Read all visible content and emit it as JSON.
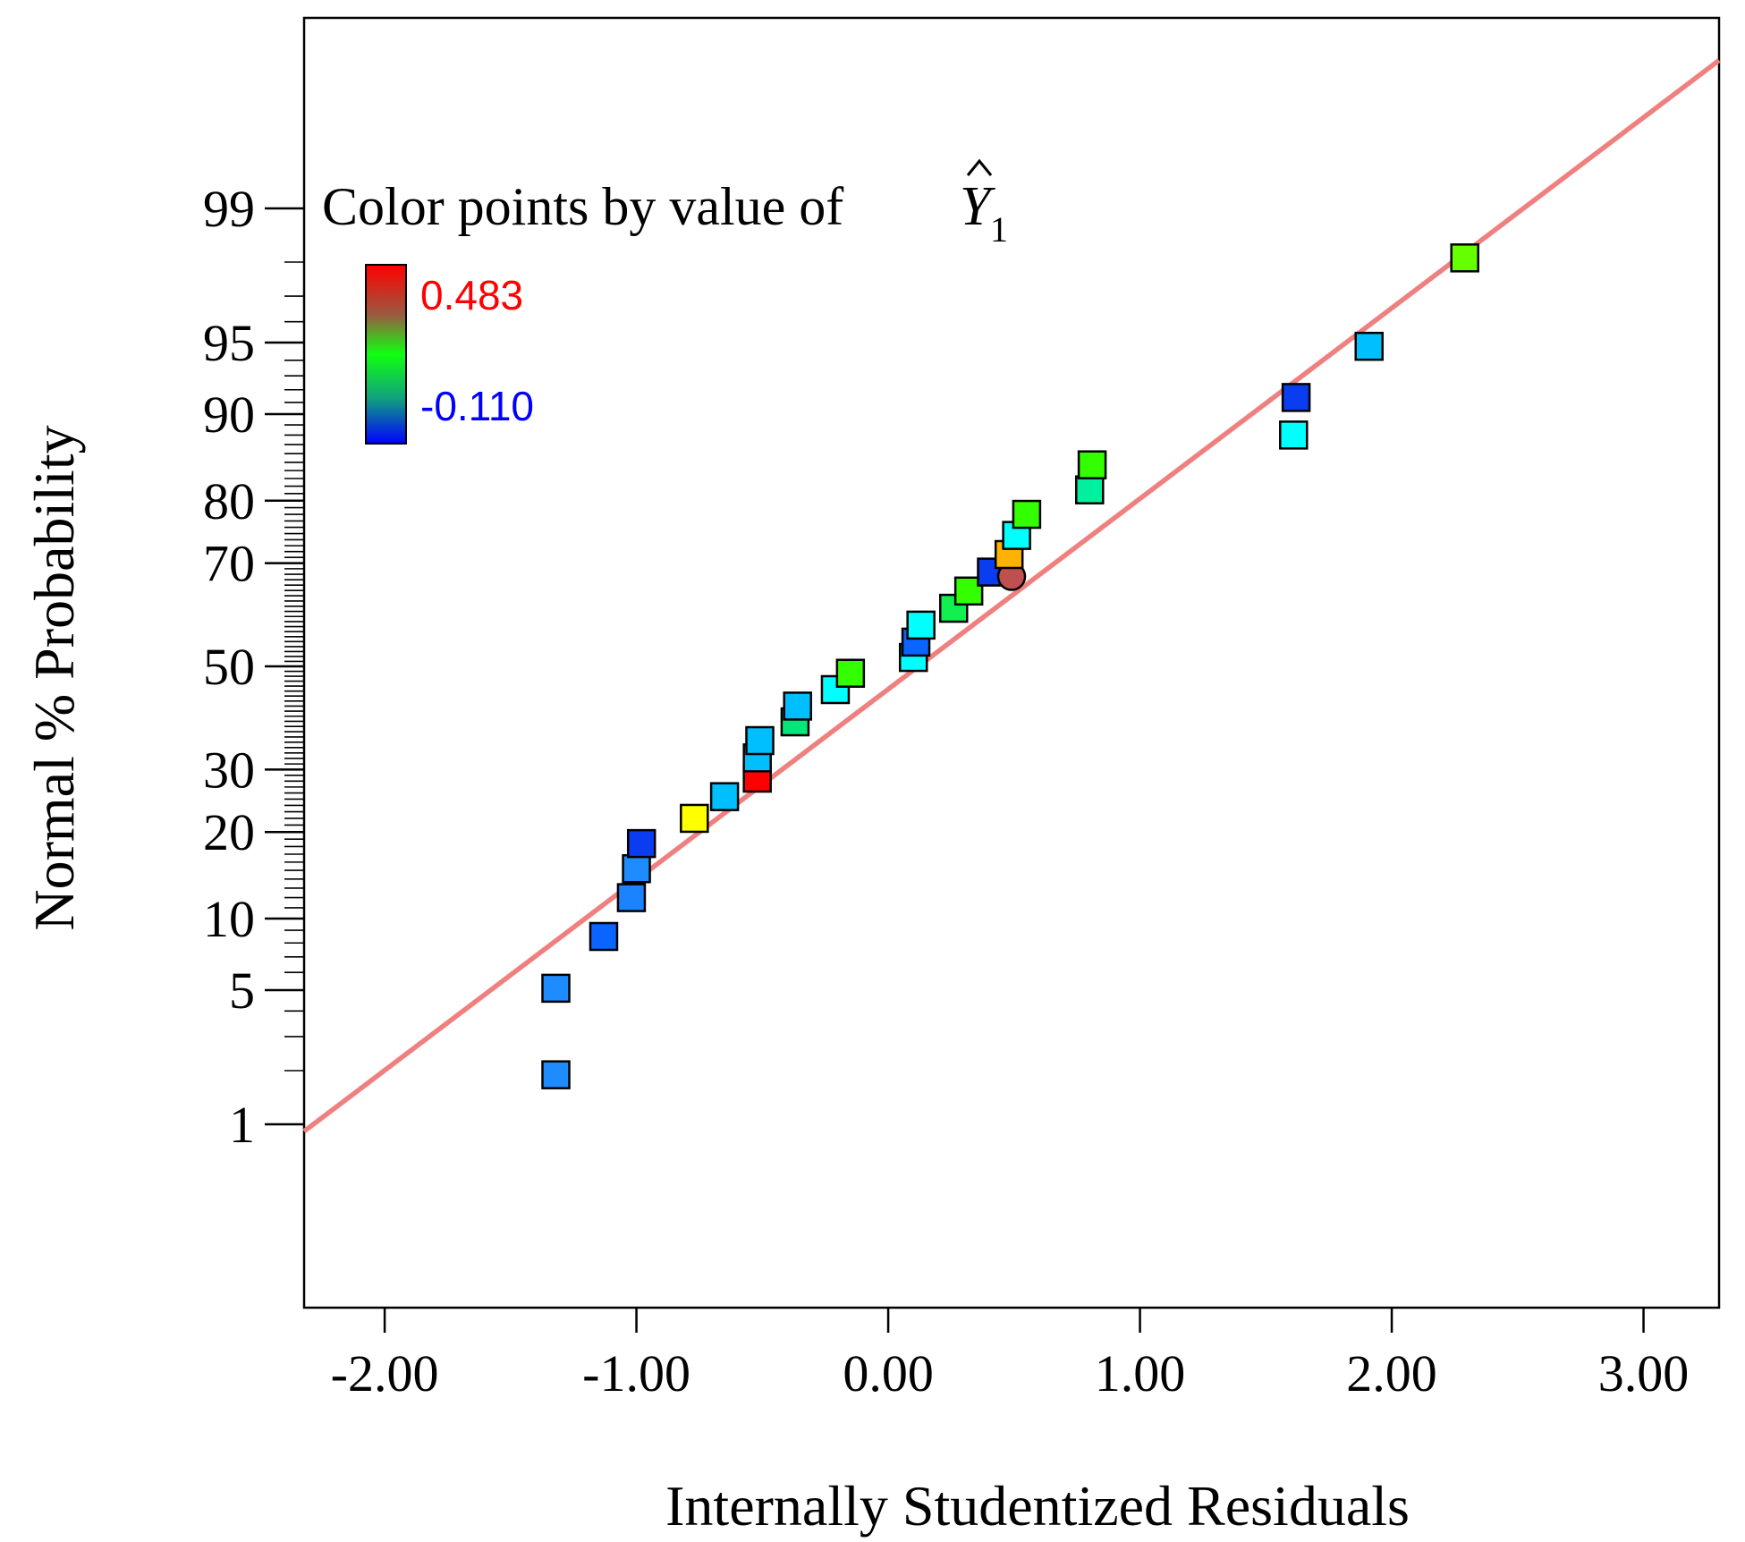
{
  "chart_data": {
    "type": "scatter",
    "xlabel": "Internally Studentized Residuals",
    "ylabel": "Normal % Probability",
    "xlim": [
      -2.32,
      3.3
    ],
    "xticks": [
      "-2.00",
      "-1.00",
      "0.00",
      "1.00",
      "2.00",
      "3.00"
    ],
    "xtick_values": [
      -2,
      -1,
      0,
      1,
      2,
      3
    ],
    "yticks": [
      "1",
      "5",
      "10",
      "20",
      "30",
      "50",
      "70",
      "80",
      "90",
      "95",
      "99"
    ],
    "ytick_values": [
      1,
      5,
      10,
      20,
      30,
      50,
      70,
      80,
      90,
      95,
      99
    ],
    "legend": {
      "title": "Color points by value of",
      "symbol": "Y",
      "subscript": "1",
      "max_label": "0.483",
      "min_label": "-0.110",
      "max_color": "#ff0000",
      "min_color": "#0000ff"
    },
    "reference_line": {
      "color": "#f08080",
      "x": [
        -2.32,
        3.3
      ],
      "p": [
        0.909,
        99.896
      ]
    },
    "points": [
      {
        "x": -1.32,
        "p": 1.9,
        "color": "#1e8cff"
      },
      {
        "x": -1.32,
        "p": 5.1,
        "color": "#1e8cff"
      },
      {
        "x": -1.13,
        "p": 8.5,
        "color": "#0a64ff"
      },
      {
        "x": -1.02,
        "p": 12.0,
        "color": "#1a84ff"
      },
      {
        "x": -1.0,
        "p": 15.2,
        "color": "#1e8cff"
      },
      {
        "x": -0.98,
        "p": 18.4,
        "color": "#0a3cf0"
      },
      {
        "x": -0.77,
        "p": 22.0,
        "color": "#ffff00"
      },
      {
        "x": -0.65,
        "p": 25.4,
        "color": "#00bfff"
      },
      {
        "x": -0.52,
        "p": 28.5,
        "color": "#ff0000"
      },
      {
        "x": -0.52,
        "p": 32.1,
        "color": "#00bfff"
      },
      {
        "x": -0.51,
        "p": 35.3,
        "color": "#00bfff"
      },
      {
        "x": -0.37,
        "p": 38.9,
        "color": "#00e87a"
      },
      {
        "x": -0.36,
        "p": 42.0,
        "color": "#00bfff"
      },
      {
        "x": -0.21,
        "p": 45.3,
        "color": "#00ffff"
      },
      {
        "x": -0.15,
        "p": 48.6,
        "color": "#33ff00"
      },
      {
        "x": 0.1,
        "p": 51.8,
        "color": "#00ffff"
      },
      {
        "x": 0.11,
        "p": 54.9,
        "color": "#0a64ff"
      },
      {
        "x": 0.13,
        "p": 58.3,
        "color": "#00ffff"
      },
      {
        "x": 0.26,
        "p": 61.6,
        "color": "#11f050"
      },
      {
        "x": 0.32,
        "p": 64.9,
        "color": "#33ff00"
      },
      {
        "x": 0.41,
        "p": 68.4,
        "color": "#0a3cf0"
      },
      {
        "x": 0.49,
        "p": 67.6,
        "color": "#c05050",
        "marker": "circle"
      },
      {
        "x": 0.48,
        "p": 71.5,
        "color": "#ffb300"
      },
      {
        "x": 0.51,
        "p": 74.7,
        "color": "#00ffff"
      },
      {
        "x": 0.55,
        "p": 78.0,
        "color": "#33ff00"
      },
      {
        "x": 0.8,
        "p": 81.5,
        "color": "#00f0a0"
      },
      {
        "x": 0.81,
        "p": 84.7,
        "color": "#33ff00"
      },
      {
        "x": 1.61,
        "p": 88.0,
        "color": "#00ffff"
      },
      {
        "x": 1.62,
        "p": 91.4,
        "color": "#0a3cf0"
      },
      {
        "x": 1.91,
        "p": 94.8,
        "color": "#00bfff"
      },
      {
        "x": 2.29,
        "p": 98.1,
        "color": "#66ff00"
      }
    ]
  }
}
